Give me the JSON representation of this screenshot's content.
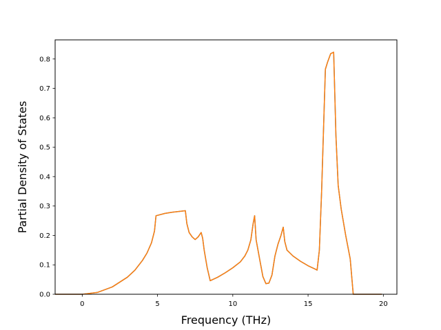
{
  "chart_data": {
    "type": "line",
    "title": "",
    "xlabel": "Frequency (THz)",
    "ylabel": "Partial Density of States",
    "xlim": [
      -1.8,
      20.9
    ],
    "ylim": [
      0.0,
      0.865
    ],
    "xticks": [
      0,
      5,
      10,
      15,
      20
    ],
    "yticks": [
      0.0,
      0.1,
      0.2,
      0.3,
      0.4,
      0.5,
      0.6,
      0.7,
      0.8
    ],
    "xtick_labels": [
      "0",
      "5",
      "10",
      "15",
      "20"
    ],
    "ytick_labels": [
      "0.0",
      "0.1",
      "0.2",
      "0.3",
      "0.4",
      "0.5",
      "0.6",
      "0.7",
      "0.8"
    ],
    "grid": false,
    "series": [
      {
        "color": "#1f77b4",
        "x": [
          -1.8,
          0.0,
          1.0,
          2.0,
          3.0,
          3.5,
          4.0,
          4.3,
          4.6,
          4.8,
          4.9,
          5.5,
          6.0,
          6.5,
          6.85,
          6.95,
          7.1,
          7.3,
          7.5,
          7.7,
          7.9,
          8.0,
          8.1,
          8.3,
          8.5,
          9.0,
          9.5,
          10.0,
          10.5,
          10.8,
          11.0,
          11.2,
          11.35,
          11.45,
          11.55,
          11.8,
          12.0,
          12.2,
          12.4,
          12.6,
          12.8,
          13.0,
          13.2,
          13.35,
          13.45,
          13.6,
          14.0,
          14.5,
          15.0,
          15.5,
          15.6,
          15.75,
          15.9,
          16.05,
          16.15,
          16.3,
          16.5,
          16.7,
          16.85,
          17.0,
          17.2,
          17.5,
          17.8,
          18.0,
          18.2,
          19.9
        ],
        "y": [
          0.0,
          0.0,
          0.006,
          0.025,
          0.058,
          0.082,
          0.115,
          0.14,
          0.175,
          0.215,
          0.267,
          0.275,
          0.279,
          0.282,
          0.284,
          0.24,
          0.21,
          0.195,
          0.186,
          0.195,
          0.21,
          0.19,
          0.15,
          0.09,
          0.046,
          0.058,
          0.073,
          0.09,
          0.11,
          0.13,
          0.15,
          0.185,
          0.24,
          0.267,
          0.185,
          0.115,
          0.06,
          0.036,
          0.038,
          0.065,
          0.13,
          0.17,
          0.2,
          0.228,
          0.18,
          0.15,
          0.13,
          0.112,
          0.097,
          0.085,
          0.082,
          0.15,
          0.35,
          0.6,
          0.765,
          0.79,
          0.818,
          0.823,
          0.54,
          0.37,
          0.29,
          0.2,
          0.12,
          0.0,
          0.0,
          0.0
        ]
      },
      {
        "color": "#ff7f0e",
        "x": [
          -1.8,
          0.0,
          1.0,
          2.0,
          3.0,
          3.5,
          4.0,
          4.3,
          4.6,
          4.8,
          4.9,
          5.5,
          6.0,
          6.5,
          6.85,
          6.95,
          7.1,
          7.3,
          7.5,
          7.7,
          7.9,
          8.0,
          8.1,
          8.3,
          8.5,
          9.0,
          9.5,
          10.0,
          10.5,
          10.8,
          11.0,
          11.2,
          11.35,
          11.45,
          11.55,
          11.8,
          12.0,
          12.2,
          12.4,
          12.6,
          12.8,
          13.0,
          13.2,
          13.35,
          13.45,
          13.6,
          14.0,
          14.5,
          15.0,
          15.5,
          15.6,
          15.75,
          15.9,
          16.05,
          16.15,
          16.3,
          16.5,
          16.7,
          16.85,
          17.0,
          17.2,
          17.5,
          17.8,
          18.0,
          18.2,
          19.9
        ],
        "y": [
          0.0,
          0.0,
          0.006,
          0.025,
          0.058,
          0.082,
          0.115,
          0.14,
          0.175,
          0.215,
          0.267,
          0.275,
          0.279,
          0.282,
          0.284,
          0.24,
          0.21,
          0.195,
          0.186,
          0.195,
          0.21,
          0.19,
          0.15,
          0.09,
          0.046,
          0.058,
          0.073,
          0.09,
          0.11,
          0.13,
          0.15,
          0.185,
          0.24,
          0.267,
          0.185,
          0.115,
          0.06,
          0.036,
          0.038,
          0.065,
          0.13,
          0.17,
          0.2,
          0.228,
          0.18,
          0.15,
          0.13,
          0.112,
          0.097,
          0.085,
          0.082,
          0.15,
          0.35,
          0.6,
          0.765,
          0.79,
          0.818,
          0.823,
          0.54,
          0.37,
          0.29,
          0.2,
          0.12,
          0.0,
          0.0,
          0.0
        ]
      }
    ]
  }
}
